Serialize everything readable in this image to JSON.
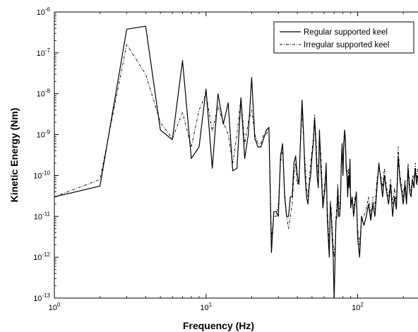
{
  "chart_data": {
    "type": "line",
    "xscale": "log",
    "yscale": "log",
    "xlabel": "Frequency (Hz)",
    "ylabel": "Kinetic Energy (Nm)",
    "xlim": [
      1,
      250
    ],
    "ylim": [
      1e-13,
      1e-06
    ],
    "x_ticks": [
      {
        "value": 1,
        "base": "10",
        "exp": "0"
      },
      {
        "value": 10,
        "base": "10",
        "exp": "1"
      },
      {
        "value": 100,
        "base": "10",
        "exp": "2"
      }
    ],
    "y_ticks": [
      {
        "value": 1e-06,
        "base": "10",
        "exp": "-6"
      },
      {
        "value": 1e-07,
        "base": "10",
        "exp": "-7"
      },
      {
        "value": 1e-08,
        "base": "10",
        "exp": "-8"
      },
      {
        "value": 1e-09,
        "base": "10",
        "exp": "-9"
      },
      {
        "value": 1e-10,
        "base": "10",
        "exp": "-10"
      },
      {
        "value": 1e-11,
        "base": "10",
        "exp": "-11"
      },
      {
        "value": 1e-12,
        "base": "10",
        "exp": "-12"
      },
      {
        "value": 1e-13,
        "base": "10",
        "exp": "-13"
      }
    ],
    "grid": false,
    "legend_position": "top-right",
    "colors": {
      "series": "#000000",
      "axes": "#000000",
      "background": "#ffffff"
    },
    "series": [
      {
        "name": "Regular supported keel",
        "line_style": "solid",
        "x": [
          1,
          2,
          3,
          4,
          5,
          6,
          7,
          8,
          9,
          10,
          11,
          12,
          13,
          14,
          15,
          16,
          17,
          18,
          19,
          20,
          21,
          22,
          23,
          24,
          25,
          26,
          27,
          28,
          29,
          30,
          31,
          32,
          33,
          34,
          35,
          36,
          37,
          38,
          39,
          40,
          41,
          42,
          43,
          44,
          45,
          46,
          47,
          48,
          49,
          50,
          51,
          52,
          53,
          54,
          55,
          56,
          57,
          58,
          59,
          60,
          61,
          62,
          63,
          64,
          65,
          66,
          67,
          68,
          69,
          70,
          71,
          72,
          73,
          74,
          75,
          76,
          77,
          78,
          79,
          80,
          81,
          82,
          83,
          84,
          85,
          86,
          87,
          88,
          89,
          90,
          92,
          94,
          96,
          98,
          100,
          103,
          106,
          110,
          114,
          118,
          122,
          126,
          130,
          134,
          138,
          142,
          146,
          150,
          155,
          160,
          165,
          170,
          175,
          180,
          185,
          190,
          195,
          200,
          205,
          210,
          215,
          220,
          225,
          230,
          235,
          240,
          245,
          250
        ],
        "y": [
          3e-11,
          5.5e-11,
          3.8e-07,
          4.5e-07,
          1.3e-09,
          7.5e-10,
          6.5e-08,
          2.6e-10,
          5e-10,
          1.3e-08,
          1.5e-10,
          1e-08,
          1.8e-09,
          6e-09,
          1.3e-10,
          1.5e-10,
          8e-09,
          2.6e-10,
          1e-09,
          2.5e-08,
          8e-10,
          5e-10,
          5e-10,
          8e-10,
          1.3e-09,
          1.5e-09,
          1.3e-12,
          1.3e-11,
          1.3e-11,
          1e-11,
          3e-10,
          6e-10,
          3e-11,
          1e-11,
          1e-11,
          3e-11,
          3e-11,
          2e-10,
          3e-10,
          1e-10,
          6e-11,
          8e-10,
          7e-09,
          1e-09,
          1e-10,
          3e-11,
          2e-11,
          6e-11,
          1e-10,
          3e-10,
          6e-10,
          2.6e-09,
          6e-10,
          1e-10,
          5e-11,
          1.3e-09,
          2e-10,
          6e-11,
          1.6e-11,
          3e-11,
          5e-11,
          2e-10,
          1e-11,
          3e-12,
          1e-12,
          2e-11,
          1e-11,
          3e-12,
          1e-12,
          9e-14,
          1e-12,
          8e-12,
          1e-11,
          5e-11,
          1e-11,
          1e-11,
          2e-11,
          2e-10,
          6e-10,
          1e-10,
          5e-10,
          1.3e-09,
          8e-10,
          1.5e-10,
          1e-10,
          3e-11,
          1e-10,
          5e-11,
          2.5e-10,
          1.6e-11,
          3e-11,
          1e-11,
          2e-11,
          4e-11,
          3e-12,
          1e-12,
          1e-11,
          6e-12,
          1e-11,
          2e-11,
          8e-12,
          2e-11,
          1e-11,
          5e-11,
          2e-10,
          8e-11,
          3e-11,
          1e-10,
          4e-11,
          2e-11,
          6e-11,
          1e-11,
          3e-11,
          1.5e-11,
          3e-10,
          8e-11,
          4e-11,
          2e-11,
          6e-11,
          2e-11,
          1.5e-10,
          4e-11,
          3e-11,
          8e-11,
          5e-11,
          1.5e-10,
          6e-11,
          1e-10
        ]
      },
      {
        "name": "Irregular supported keel",
        "line_style": "dashdot",
        "x": [
          1,
          2,
          3,
          4,
          5,
          6,
          7,
          8,
          9,
          10,
          11,
          12,
          13,
          14,
          15,
          16,
          17,
          18,
          19,
          20,
          21,
          22,
          23,
          24,
          25,
          26,
          27,
          28,
          29,
          30,
          31,
          32,
          33,
          34,
          35,
          36,
          37,
          38,
          39,
          40,
          41,
          42,
          43,
          44,
          45,
          46,
          47,
          48,
          49,
          50,
          51,
          52,
          53,
          54,
          55,
          56,
          57,
          58,
          59,
          60,
          61,
          62,
          63,
          64,
          65,
          66,
          67,
          68,
          69,
          70,
          71,
          72,
          73,
          74,
          75,
          76,
          77,
          78,
          79,
          80,
          81,
          82,
          83,
          84,
          85,
          86,
          87,
          88,
          89,
          90,
          92,
          94,
          96,
          98,
          100,
          103,
          106,
          110,
          114,
          118,
          122,
          126,
          130,
          134,
          138,
          142,
          146,
          150,
          155,
          160,
          165,
          170,
          175,
          180,
          185,
          190,
          195,
          200,
          205,
          210,
          215,
          220,
          225,
          230,
          235,
          240,
          245,
          250
        ],
        "y": [
          3e-11,
          8e-11,
          1.6e-07,
          3e-08,
          2e-09,
          8e-10,
          3.5e-09,
          5e-10,
          4e-09,
          1e-08,
          1.2e-09,
          5e-09,
          2e-09,
          1e-09,
          2e-10,
          1e-09,
          8e-09,
          6e-10,
          2e-09,
          4e-09,
          1e-09,
          6e-10,
          6e-10,
          1e-09,
          1e-09,
          1.5e-09,
          3e-12,
          1e-11,
          1e-11,
          2e-11,
          2e-10,
          5e-10,
          4e-11,
          1e-11,
          5e-12,
          1e-11,
          2e-11,
          1e-10,
          2e-10,
          6e-11,
          8e-11,
          6e-10,
          4e-09,
          8e-10,
          2e-10,
          5e-11,
          3e-11,
          8e-11,
          2e-10,
          4e-10,
          8e-10,
          3e-09,
          1e-09,
          2e-10,
          1e-10,
          1e-09,
          4e-10,
          1e-10,
          2e-11,
          4e-11,
          8e-11,
          1.5e-10,
          2e-11,
          5e-12,
          2e-12,
          2.5e-11,
          1.5e-11,
          5e-12,
          2e-12,
          1e-12,
          2e-12,
          1e-11,
          2e-11,
          6e-11,
          2e-11,
          1.5e-11,
          3e-11,
          1.5e-10,
          4e-10,
          1.5e-10,
          8e-10,
          1.2e-09,
          6e-10,
          2e-10,
          1.5e-10,
          5e-11,
          1.5e-10,
          8e-11,
          2e-10,
          3e-11,
          2e-11,
          1.5e-11,
          3e-11,
          3e-11,
          5e-12,
          2e-12,
          8e-12,
          1e-11,
          1.5e-11,
          3e-11,
          1e-11,
          3e-11,
          1.5e-11,
          8e-11,
          1.5e-10,
          1e-10,
          5e-11,
          1.5e-10,
          5e-11,
          3e-11,
          8e-11,
          2e-11,
          5e-11,
          2e-11,
          5e-10,
          1e-10,
          6e-11,
          3e-11,
          8e-11,
          3e-11,
          2e-10,
          6e-11,
          4e-11,
          1e-10,
          8e-11,
          2e-10,
          8e-11,
          1.5e-10
        ]
      }
    ]
  }
}
